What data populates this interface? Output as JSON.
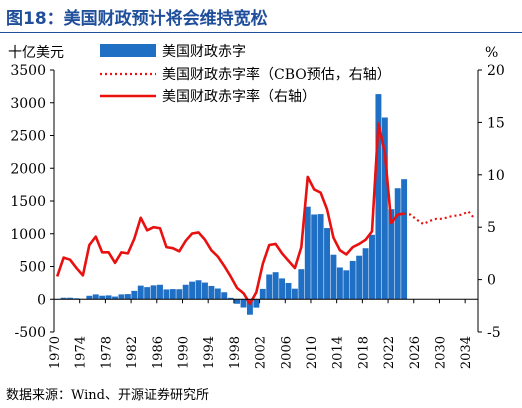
{
  "figure": {
    "title": "图18：美国财政预计将会维持宽松",
    "source": "数据来源：Wind、开源证券研究所"
  },
  "chart_data": {
    "type": "bar+line",
    "left_axis_unit": "十亿美元",
    "right_axis_unit": "%",
    "ylim_left": [
      -500,
      3500
    ],
    "ylim_right": [
      -5,
      20
    ],
    "left_ticks": [
      "3500",
      "3000",
      "2500",
      "2000",
      "1500",
      "1000",
      "500",
      "0",
      "-500"
    ],
    "right_ticks": [
      "20",
      "15",
      "10",
      "5",
      "0",
      "-5"
    ],
    "xlim": [
      1970,
      2036
    ],
    "x_ticks": [
      "1970",
      "1974",
      "1978",
      "1982",
      "1986",
      "1990",
      "1994",
      "1998",
      "2002",
      "2006",
      "2010",
      "2014",
      "2018",
      "2022",
      "2026",
      "2030",
      "2034"
    ],
    "legend": {
      "bar": "美国财政赤字",
      "dotted": "美国财政赤字率（CBO预估，右轴）",
      "line": "美国财政赤字率（右轴）"
    },
    "bars": {
      "name": "美国财政赤字",
      "color": "#1f6fc5",
      "x": [
        1970,
        1971,
        1972,
        1973,
        1974,
        1975,
        1976,
        1977,
        1978,
        1979,
        1980,
        1981,
        1982,
        1983,
        1984,
        1985,
        1986,
        1987,
        1988,
        1989,
        1990,
        1991,
        1992,
        1993,
        1994,
        1995,
        1996,
        1997,
        1998,
        1999,
        2000,
        2001,
        2002,
        2003,
        2004,
        2005,
        2006,
        2007,
        2008,
        2009,
        2010,
        2011,
        2012,
        2013,
        2014,
        2015,
        2016,
        2017,
        2018,
        2019,
        2020,
        2021,
        2022,
        2023,
        2024
      ],
      "values": [
        3,
        23,
        23,
        15,
        6,
        53,
        74,
        54,
        59,
        41,
        74,
        79,
        128,
        208,
        185,
        212,
        221,
        150,
        155,
        153,
        221,
        269,
        290,
        255,
        203,
        164,
        107,
        22,
        -69,
        -126,
        -236,
        -128,
        158,
        378,
        413,
        318,
        248,
        161,
        459,
        1413,
        1294,
        1300,
        1087,
        680,
        485,
        442,
        585,
        665,
        779,
        984,
        3132,
        2775,
        1375,
        1695,
        1833
      ]
    },
    "line": {
      "name": "美国财政赤字率（右轴）",
      "color": "#e8110f",
      "x": [
        1970,
        1971,
        1972,
        1973,
        1974,
        1975,
        1976,
        1977,
        1978,
        1979,
        1980,
        1981,
        1982,
        1983,
        1984,
        1985,
        1986,
        1987,
        1988,
        1989,
        1990,
        1991,
        1992,
        1993,
        1994,
        1995,
        1996,
        1997,
        1998,
        1999,
        2000,
        2001,
        2002,
        2003,
        2004,
        2005,
        2006,
        2007,
        2008,
        2009,
        2010,
        2011,
        2012,
        2013,
        2014,
        2015,
        2016,
        2017,
        2018,
        2019,
        2020,
        2021,
        2022,
        2023,
        2024
      ],
      "values": [
        0.3,
        2.1,
        1.9,
        1.1,
        0.4,
        3.3,
        4.1,
        2.6,
        2.6,
        1.6,
        2.6,
        2.5,
        3.9,
        5.9,
        4.7,
        5.0,
        4.9,
        3.1,
        3.0,
        2.7,
        3.7,
        4.4,
        4.5,
        3.8,
        2.8,
        2.2,
        1.3,
        0.3,
        -0.8,
        -1.3,
        -2.3,
        -1.2,
        1.5,
        3.3,
        3.4,
        2.5,
        1.8,
        1.1,
        3.1,
        9.8,
        8.6,
        8.3,
        6.7,
        4.0,
        2.8,
        2.4,
        3.1,
        3.4,
        3.8,
        4.6,
        14.9,
        12.1,
        5.4,
        6.2,
        6.3
      ]
    },
    "projection": {
      "name": "美国财政赤字率（CBO预估，右轴）",
      "color": "#e8110f",
      "x": [
        2024,
        2025,
        2026,
        2027,
        2028,
        2029,
        2030,
        2031,
        2032,
        2033,
        2034,
        2035
      ],
      "values": [
        6.3,
        6.2,
        5.7,
        5.3,
        5.6,
        5.8,
        5.8,
        6.0,
        6.1,
        6.2,
        6.5,
        5.8
      ]
    }
  }
}
